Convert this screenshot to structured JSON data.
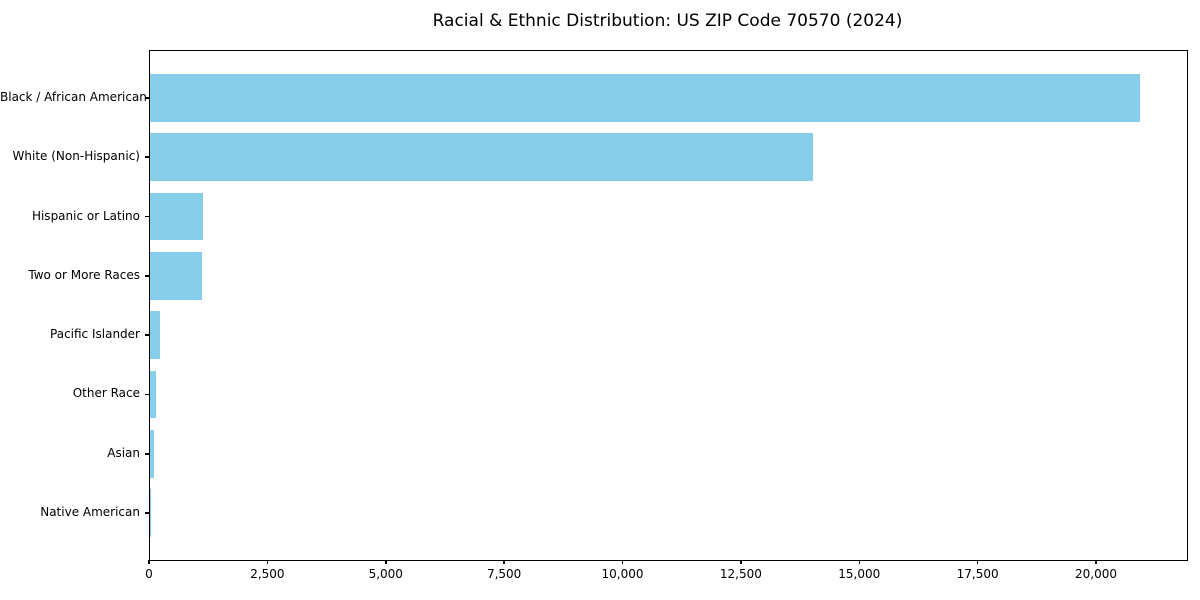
{
  "figure": {
    "background": "#ffffff",
    "plot_border_color": "#000000"
  },
  "chart_data": {
    "type": "bar",
    "orientation": "horizontal",
    "title": "Racial & Ethnic Distribution: US ZIP Code 70570 (2024)",
    "categories": [
      "Black / African American",
      "White (Non-Hispanic)",
      "Hispanic or Latino",
      "Two or More Races",
      "Pacific Islander",
      "Other Race",
      "Asian",
      "Native American"
    ],
    "values": [
      20900,
      14000,
      1120,
      1100,
      205,
      120,
      80,
      20
    ],
    "bar_color": "#87CEEB",
    "xlabel": "",
    "ylabel": "",
    "xlim": [
      0,
      21900
    ],
    "x_ticks": [
      0,
      2500,
      5000,
      7500,
      10000,
      12500,
      15000,
      17500,
      20000
    ],
    "x_tick_labels": [
      "0",
      "2,500",
      "5,000",
      "7,500",
      "10,000",
      "12,500",
      "15,000",
      "17,500",
      "20,000"
    ],
    "grid": false,
    "legend": "none"
  }
}
